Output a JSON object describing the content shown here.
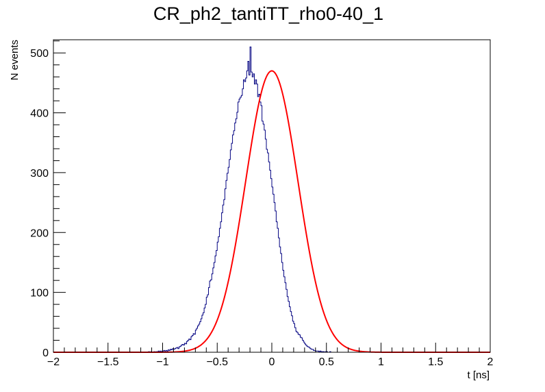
{
  "chart_data": {
    "type": "histogram",
    "title": "CR_ph2_tantiTT_rho0-40_1",
    "xlabel": "t [ns]",
    "ylabel": "N events",
    "xlim": [
      -2,
      2
    ],
    "ylim": [
      0,
      522
    ],
    "x_ticks": [
      {
        "value": -2,
        "label": "−2"
      },
      {
        "value": -1.5,
        "label": "−1.5"
      },
      {
        "value": -1,
        "label": "−1"
      },
      {
        "value": -0.5,
        "label": "−0.5"
      },
      {
        "value": 0,
        "label": "0"
      },
      {
        "value": 0.5,
        "label": "0.5"
      },
      {
        "value": 1,
        "label": "1"
      },
      {
        "value": 1.5,
        "label": "1.5"
      },
      {
        "value": 2,
        "label": "2"
      }
    ],
    "y_ticks": [
      {
        "value": 0,
        "label": "0"
      },
      {
        "value": 100,
        "label": "100"
      },
      {
        "value": 200,
        "label": "200"
      },
      {
        "value": 300,
        "label": "300"
      },
      {
        "value": 400,
        "label": "400"
      },
      {
        "value": 500,
        "label": "500"
      }
    ],
    "grid": false,
    "legend": "none",
    "colors": {
      "histogram": "#000080",
      "fit": "#ff0000",
      "frame": "#000000"
    },
    "bin_width": 0.01,
    "histogram_counts": [
      0,
      0,
      0,
      0,
      0,
      0,
      0,
      0,
      0,
      0,
      0,
      0,
      0,
      0,
      0,
      0,
      0,
      0,
      0,
      0,
      0,
      0,
      0,
      0,
      0,
      0,
      0,
      0,
      0,
      0,
      0,
      0,
      0,
      0,
      0,
      0,
      0,
      0,
      0,
      0,
      0,
      0,
      0,
      0,
      0,
      0,
      0,
      0,
      0,
      0,
      0,
      0,
      0,
      0,
      0,
      0,
      0,
      0,
      0,
      0,
      0,
      0,
      0,
      0,
      0,
      0,
      0,
      0,
      0,
      0,
      0,
      0,
      0,
      0,
      0,
      0,
      0,
      0,
      0,
      0,
      0,
      0,
      0,
      0,
      0,
      0,
      0,
      1,
      0,
      1,
      0,
      0,
      1,
      0,
      1,
      1,
      2,
      1,
      2,
      1,
      2,
      3,
      2,
      3,
      2,
      4,
      3,
      5,
      4,
      6,
      5,
      6,
      7,
      8,
      6,
      9,
      10,
      12,
      13,
      12,
      15,
      14,
      18,
      20,
      22,
      21,
      26,
      28,
      31,
      30,
      37,
      40,
      44,
      47,
      51,
      56,
      62,
      66,
      74,
      80,
      92,
      96,
      108,
      119,
      121,
      131,
      141,
      150,
      161,
      170,
      184,
      193,
      207,
      218,
      233,
      246,
      255,
      273,
      287,
      299,
      309,
      322,
      338,
      349,
      363,
      370,
      383,
      390,
      401,
      418,
      423,
      426,
      429,
      440,
      455,
      452,
      458,
      470,
      486,
      463,
      510,
      468,
      460,
      465,
      448,
      455,
      448,
      427,
      431,
      418,
      412,
      386,
      381,
      371,
      356,
      339,
      333,
      318,
      304,
      290,
      276,
      264,
      250,
      236,
      218,
      207,
      191,
      176,
      165,
      150,
      137,
      126,
      116,
      105,
      93,
      85,
      76,
      68,
      61,
      52,
      48,
      41,
      35,
      33,
      30,
      29,
      25,
      24,
      20,
      17,
      14,
      12,
      10,
      9,
      8,
      6,
      5,
      5,
      3,
      3,
      2,
      2,
      2,
      1,
      2,
      1,
      1,
      1,
      0,
      1,
      1,
      0,
      0,
      1,
      0,
      0,
      0,
      0,
      0,
      0,
      0,
      0,
      0,
      0,
      0,
      0,
      0,
      0,
      0,
      0,
      0,
      0,
      0,
      0,
      0,
      0,
      0,
      0,
      0,
      0,
      0,
      0,
      0,
      0,
      0,
      0,
      0,
      0,
      0,
      0,
      0,
      0,
      0,
      0,
      0,
      0,
      0,
      0,
      0,
      0,
      0,
      0,
      0,
      0,
      0,
      0,
      0,
      0,
      0,
      0,
      0,
      0,
      0,
      0,
      0,
      0,
      0,
      0,
      0,
      0,
      0,
      0,
      0,
      0,
      0,
      0,
      0,
      0,
      0,
      0,
      0,
      0,
      0,
      0,
      0,
      0,
      0,
      0,
      0,
      0
    ],
    "fit": {
      "function": "gaussian",
      "constant": 470,
      "mean": 0.0,
      "sigma": 0.24
    }
  }
}
